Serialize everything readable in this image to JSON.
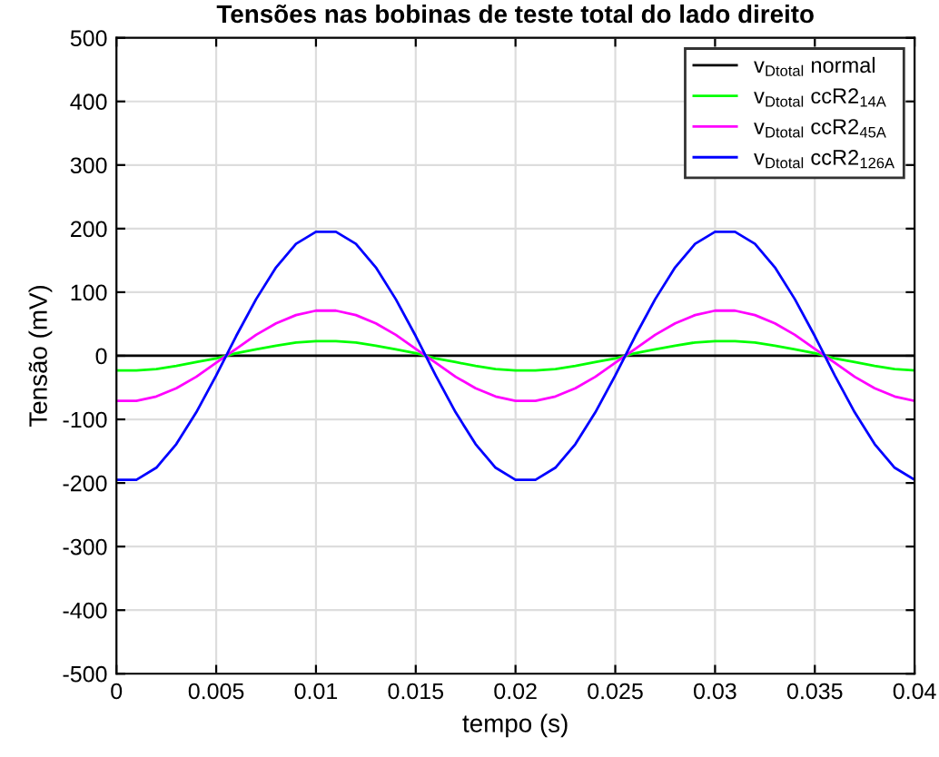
{
  "chart_data": {
    "type": "line",
    "title": "Tensões nas bobinas de teste total do lado direito",
    "xlabel": "tempo (s)",
    "ylabel": "Tensão (mV)",
    "x": [
      0,
      0.001,
      0.002,
      0.003,
      0.004,
      0.005,
      0.006,
      0.007,
      0.008,
      0.009,
      0.01,
      0.011,
      0.012,
      0.013,
      0.014,
      0.015,
      0.016,
      0.017,
      0.018,
      0.019,
      0.02,
      0.021,
      0.022,
      0.023,
      0.024,
      0.025,
      0.026,
      0.027,
      0.028,
      0.029,
      0.03,
      0.031,
      0.032,
      0.033,
      0.034,
      0.035,
      0.036,
      0.037,
      0.038,
      0.039,
      0.04
    ],
    "series": [
      {
        "name": "v$_{Dtotal}$ normal",
        "color": "#000000",
        "values": [
          0,
          0,
          0,
          0,
          0,
          0,
          0,
          0,
          0,
          0,
          0,
          0,
          0,
          0,
          0,
          0,
          0,
          0,
          0,
          0,
          0,
          0,
          0,
          0,
          0,
          0,
          0,
          0,
          0,
          0,
          0,
          0,
          0,
          0,
          0,
          0,
          0,
          0,
          0,
          0,
          0
        ]
      },
      {
        "name": "v$_{Dtotal}$ ccR2$_{14A}$",
        "color": "#00ff00",
        "values": [
          -23,
          -23,
          -21,
          -16,
          -10,
          -4,
          4,
          10,
          16,
          21,
          23,
          23,
          21,
          16,
          10,
          4,
          -4,
          -10,
          -16,
          -21,
          -23,
          -23,
          -21,
          -16,
          -10,
          -4,
          4,
          10,
          16,
          21,
          23,
          23,
          21,
          16,
          10,
          4,
          -4,
          -10,
          -16,
          -21,
          -23
        ]
      },
      {
        "name": "v$_{Dtotal}$ ccR2$_{45A}$",
        "color": "#ff00ff",
        "values": [
          -71,
          -71,
          -64,
          -51,
          -33,
          -11,
          11,
          33,
          51,
          64,
          71,
          71,
          64,
          51,
          33,
          11,
          -11,
          -33,
          -51,
          -64,
          -71,
          -71,
          -64,
          -51,
          -33,
          -11,
          11,
          33,
          51,
          64,
          71,
          71,
          64,
          51,
          33,
          11,
          -11,
          -33,
          -51,
          -64,
          -71
        ]
      },
      {
        "name": "v$_{Dtotal}$ ccR2$_{126A}$",
        "color": "#0000ff",
        "values": [
          -195,
          -195,
          -176,
          -139,
          -89,
          -31,
          31,
          89,
          139,
          176,
          195,
          195,
          176,
          139,
          89,
          31,
          -31,
          -89,
          -139,
          -176,
          -195,
          -195,
          -176,
          -139,
          -89,
          -31,
          31,
          89,
          139,
          176,
          195,
          195,
          176,
          139,
          89,
          31,
          -31,
          -89,
          -139,
          -176,
          -195
        ]
      }
    ],
    "xlim": [
      0,
      0.04
    ],
    "xticks": [
      0,
      0.005,
      0.01,
      0.015,
      0.02,
      0.025,
      0.03,
      0.035,
      0.04
    ],
    "ylim": [
      -500,
      500
    ],
    "yticks": [
      -500,
      -400,
      -300,
      -200,
      -100,
      0,
      100,
      200,
      300,
      400,
      500
    ],
    "grid": true,
    "legend": "top right"
  }
}
